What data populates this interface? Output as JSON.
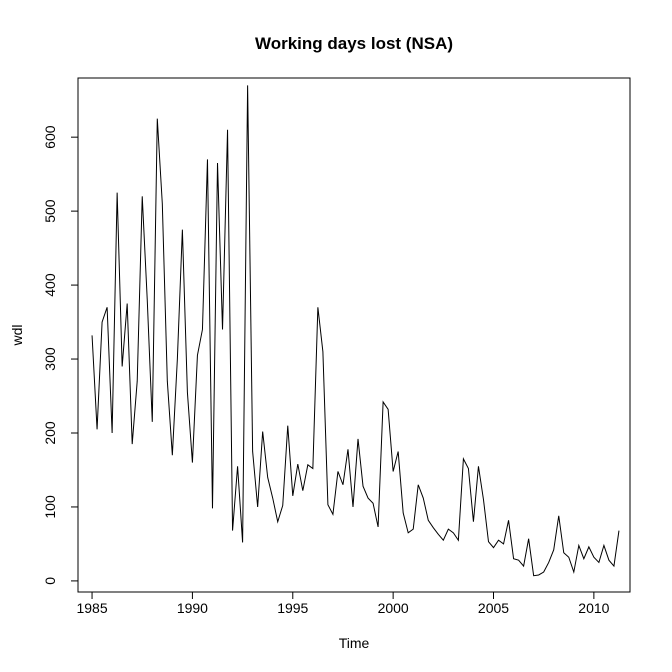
{
  "chart_data": {
    "type": "line",
    "title": "Working days lost (NSA)",
    "xlabel": "Time",
    "ylabel": "wdl",
    "xlim": [
      1984.3,
      2011.8
    ],
    "ylim": [
      -15,
      680
    ],
    "x_ticks": [
      1985,
      1990,
      1995,
      2000,
      2005,
      2010
    ],
    "y_ticks": [
      0,
      100,
      200,
      300,
      400,
      500,
      600
    ],
    "grid": false,
    "line_color": "#000000",
    "start": 1985.0,
    "frequency": 4,
    "series": [
      {
        "values": [
          332,
          205,
          350,
          370,
          200,
          525,
          290,
          375,
          185,
          270,
          520,
          380,
          215,
          625,
          510,
          270,
          170,
          300,
          475,
          255,
          160,
          305,
          340,
          570,
          98,
          565,
          340,
          610,
          68,
          155,
          52,
          670,
          175,
          100,
          202,
          140,
          112,
          80,
          102,
          210,
          115,
          158,
          122,
          157,
          152,
          370,
          310,
          103,
          90,
          148,
          130,
          178,
          100,
          192,
          128,
          112,
          105,
          73,
          242,
          232,
          148,
          175,
          92,
          65,
          70,
          130,
          112,
          82,
          72,
          63,
          55,
          70,
          65,
          55,
          165,
          152,
          80,
          155,
          110,
          53,
          45,
          55,
          50,
          82,
          30,
          28,
          20,
          57,
          7,
          8,
          12,
          25,
          42,
          88,
          38,
          32,
          12,
          48,
          30,
          46,
          32,
          25,
          48,
          28,
          20,
          68
        ]
      }
    ]
  }
}
